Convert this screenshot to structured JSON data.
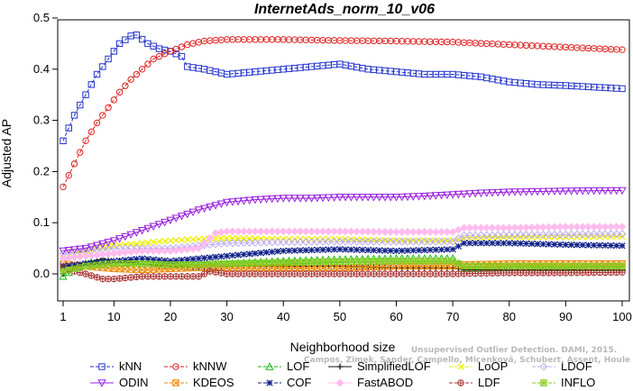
{
  "chart_data": {
    "type": "line",
    "title": "InternetAds_norm_10_v06",
    "xlabel": "Neighborhood size",
    "ylabel": "Adjusted AP",
    "xlim": [
      1,
      100
    ],
    "ylim": [
      -0.05,
      0.5
    ],
    "xticks": [
      1,
      10,
      20,
      30,
      40,
      50,
      60,
      70,
      80,
      90,
      100
    ],
    "yticks": [
      0.0,
      0.1,
      0.2,
      0.3,
      0.4,
      0.5
    ],
    "ytick_labels": [
      "0.0",
      "0.1",
      "0.2",
      "0.3",
      "0.4",
      "0.5"
    ],
    "grid": false,
    "legend_position": "bottom",
    "watermark": [
      "Campos, Zimek, Sander, Campello, Micenková, Schubert, Assent, Houle",
      "Unsupervised Outlier Detection. DAMI, 2015."
    ],
    "series": [
      {
        "name": "kNN",
        "color": "#2233cc",
        "marker": "square",
        "dashed": true,
        "points": [
          [
            1,
            0.26
          ],
          [
            3,
            0.31
          ],
          [
            5,
            0.35
          ],
          [
            7,
            0.39
          ],
          [
            9,
            0.42
          ],
          [
            11,
            0.45
          ],
          [
            13,
            0.465
          ],
          [
            14,
            0.467
          ],
          [
            16,
            0.45
          ],
          [
            18,
            0.44
          ],
          [
            20,
            0.435
          ],
          [
            22,
            0.425
          ],
          [
            23,
            0.405
          ],
          [
            26,
            0.4
          ],
          [
            30,
            0.39
          ],
          [
            35,
            0.395
          ],
          [
            40,
            0.4
          ],
          [
            45,
            0.405
          ],
          [
            50,
            0.41
          ],
          [
            55,
            0.4
          ],
          [
            60,
            0.395
          ],
          [
            65,
            0.39
          ],
          [
            70,
            0.39
          ],
          [
            75,
            0.385
          ],
          [
            80,
            0.375
          ],
          [
            85,
            0.37
          ],
          [
            90,
            0.368
          ],
          [
            95,
            0.365
          ],
          [
            100,
            0.362
          ]
        ]
      },
      {
        "name": "kNNW",
        "color": "#dd2222",
        "marker": "circle",
        "dashed": true,
        "points": [
          [
            1,
            0.17
          ],
          [
            3,
            0.215
          ],
          [
            5,
            0.26
          ],
          [
            7,
            0.295
          ],
          [
            9,
            0.325
          ],
          [
            11,
            0.355
          ],
          [
            13,
            0.38
          ],
          [
            15,
            0.4
          ],
          [
            17,
            0.42
          ],
          [
            20,
            0.435
          ],
          [
            23,
            0.448
          ],
          [
            26,
            0.455
          ],
          [
            30,
            0.458
          ],
          [
            40,
            0.458
          ],
          [
            50,
            0.456
          ],
          [
            60,
            0.455
          ],
          [
            70,
            0.453
          ],
          [
            80,
            0.448
          ],
          [
            90,
            0.443
          ],
          [
            100,
            0.438
          ]
        ]
      },
      {
        "name": "LOF",
        "color": "#11bb11",
        "marker": "triangle",
        "dashed": true,
        "points": [
          [
            1,
            -0.005
          ],
          [
            3,
            0.01
          ],
          [
            5,
            0.02
          ],
          [
            8,
            0.025
          ],
          [
            10,
            0.02
          ],
          [
            15,
            0.025
          ],
          [
            20,
            0.02
          ],
          [
            25,
            0.018
          ],
          [
            30,
            0.02
          ],
          [
            40,
            0.025
          ],
          [
            50,
            0.028
          ],
          [
            60,
            0.03
          ],
          [
            70,
            0.03
          ],
          [
            72,
            0.01
          ],
          [
            80,
            0.012
          ],
          [
            90,
            0.012
          ],
          [
            100,
            0.012
          ]
        ]
      },
      {
        "name": "SimplifiedLOF",
        "color": "#111111",
        "marker": "plus",
        "dashed": false,
        "points": [
          [
            1,
            0.0
          ],
          [
            3,
            0.01
          ],
          [
            5,
            0.02
          ],
          [
            8,
            0.03
          ],
          [
            10,
            0.025
          ],
          [
            15,
            0.02
          ],
          [
            20,
            0.015
          ],
          [
            25,
            0.012
          ],
          [
            30,
            0.015
          ],
          [
            40,
            0.015
          ],
          [
            50,
            0.015
          ],
          [
            60,
            0.012
          ],
          [
            70,
            0.012
          ],
          [
            72,
            0.008
          ],
          [
            80,
            0.008
          ],
          [
            90,
            0.008
          ],
          [
            100,
            0.008
          ]
        ]
      },
      {
        "name": "LoOP",
        "color": "#eeee00",
        "marker": "x",
        "dashed": true,
        "points": [
          [
            1,
            0.03
          ],
          [
            5,
            0.045
          ],
          [
            10,
            0.055
          ],
          [
            15,
            0.06
          ],
          [
            20,
            0.065
          ],
          [
            25,
            0.068
          ],
          [
            30,
            0.07
          ],
          [
            40,
            0.068
          ],
          [
            50,
            0.068
          ],
          [
            60,
            0.065
          ],
          [
            70,
            0.065
          ],
          [
            72,
            0.07
          ],
          [
            80,
            0.072
          ],
          [
            90,
            0.072
          ],
          [
            100,
            0.073
          ]
        ]
      },
      {
        "name": "LDOF",
        "color": "#bbaaee",
        "marker": "diamond",
        "dashed": true,
        "points": [
          [
            1,
            0.04
          ],
          [
            5,
            0.045
          ],
          [
            10,
            0.05
          ],
          [
            15,
            0.05
          ],
          [
            20,
            0.05
          ],
          [
            25,
            0.055
          ],
          [
            30,
            0.06
          ],
          [
            40,
            0.062
          ],
          [
            50,
            0.063
          ],
          [
            60,
            0.063
          ],
          [
            70,
            0.063
          ],
          [
            72,
            0.075
          ],
          [
            80,
            0.076
          ],
          [
            90,
            0.077
          ],
          [
            100,
            0.078
          ]
        ]
      },
      {
        "name": "ODIN",
        "color": "#9922dd",
        "marker": "tri-down",
        "dashed": false,
        "points": [
          [
            1,
            0.045
          ],
          [
            5,
            0.05
          ],
          [
            10,
            0.065
          ],
          [
            15,
            0.085
          ],
          [
            20,
            0.105
          ],
          [
            25,
            0.125
          ],
          [
            30,
            0.14
          ],
          [
            35,
            0.145
          ],
          [
            40,
            0.148
          ],
          [
            45,
            0.148
          ],
          [
            50,
            0.15
          ],
          [
            55,
            0.15
          ],
          [
            60,
            0.15
          ],
          [
            65,
            0.152
          ],
          [
            70,
            0.155
          ],
          [
            75,
            0.158
          ],
          [
            80,
            0.16
          ],
          [
            90,
            0.162
          ],
          [
            100,
            0.163
          ]
        ]
      },
      {
        "name": "KDEOS",
        "color": "#ee8800",
        "marker": "square-x",
        "dashed": true,
        "points": [
          [
            1,
            0.02
          ],
          [
            5,
            0.015
          ],
          [
            10,
            0.01
          ],
          [
            15,
            0.008
          ],
          [
            20,
            0.01
          ],
          [
            25,
            0.012
          ],
          [
            30,
            0.012
          ],
          [
            40,
            0.012
          ],
          [
            50,
            0.012
          ],
          [
            60,
            0.015
          ],
          [
            70,
            0.015
          ],
          [
            72,
            0.018
          ],
          [
            80,
            0.02
          ],
          [
            90,
            0.02
          ],
          [
            100,
            0.02
          ]
        ]
      },
      {
        "name": "COF",
        "color": "#112288",
        "marker": "star",
        "dashed": true,
        "points": [
          [
            1,
            0.015
          ],
          [
            5,
            0.02
          ],
          [
            10,
            0.025
          ],
          [
            15,
            0.03
          ],
          [
            20,
            0.025
          ],
          [
            25,
            0.03
          ],
          [
            30,
            0.035
          ],
          [
            40,
            0.045
          ],
          [
            50,
            0.048
          ],
          [
            60,
            0.045
          ],
          [
            70,
            0.048
          ],
          [
            72,
            0.06
          ],
          [
            80,
            0.06
          ],
          [
            90,
            0.057
          ],
          [
            100,
            0.055
          ]
        ]
      },
      {
        "name": "FastABOD",
        "color": "#ffbbee",
        "marker": "diamond-fill",
        "dashed": false,
        "points": [
          [
            1,
            0.03
          ],
          [
            5,
            0.035
          ],
          [
            10,
            0.04
          ],
          [
            15,
            0.045
          ],
          [
            20,
            0.045
          ],
          [
            25,
            0.05
          ],
          [
            28,
            0.08
          ],
          [
            30,
            0.083
          ],
          [
            40,
            0.083
          ],
          [
            50,
            0.083
          ],
          [
            60,
            0.082
          ],
          [
            70,
            0.082
          ],
          [
            72,
            0.09
          ],
          [
            80,
            0.09
          ],
          [
            90,
            0.092
          ],
          [
            100,
            0.092
          ]
        ]
      },
      {
        "name": "LDF",
        "color": "#aa3333",
        "marker": "circle-plus",
        "dashed": true,
        "points": [
          [
            1,
            0.01
          ],
          [
            5,
            0.0
          ],
          [
            8,
            -0.01
          ],
          [
            10,
            -0.01
          ],
          [
            15,
            -0.005
          ],
          [
            20,
            -0.005
          ],
          [
            25,
            -0.005
          ],
          [
            27,
            0.005
          ],
          [
            30,
            0.0
          ],
          [
            40,
            0.0
          ],
          [
            50,
            0.0
          ],
          [
            60,
            0.0
          ],
          [
            70,
            0.0
          ],
          [
            80,
            0.002
          ],
          [
            90,
            0.002
          ],
          [
            100,
            0.003
          ]
        ]
      },
      {
        "name": "INFLO",
        "color": "#88cc22",
        "marker": "square-star",
        "dashed": true,
        "points": [
          [
            1,
            0.005
          ],
          [
            5,
            0.015
          ],
          [
            10,
            0.02
          ],
          [
            15,
            0.02
          ],
          [
            20,
            0.018
          ],
          [
            25,
            0.018
          ],
          [
            30,
            0.02
          ],
          [
            40,
            0.022
          ],
          [
            50,
            0.024
          ],
          [
            60,
            0.025
          ],
          [
            70,
            0.025
          ],
          [
            72,
            0.015
          ],
          [
            80,
            0.015
          ],
          [
            90,
            0.015
          ],
          [
            100,
            0.015
          ]
        ]
      }
    ]
  }
}
